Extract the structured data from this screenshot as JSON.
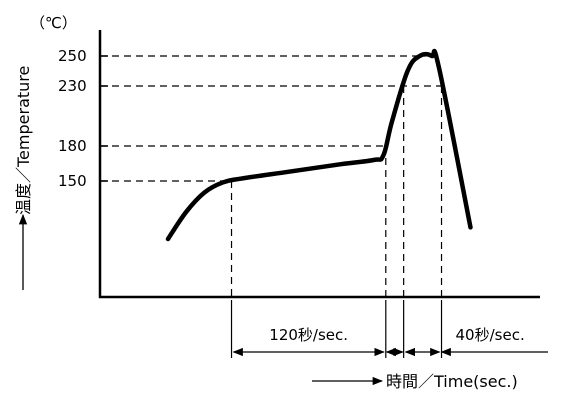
{
  "chart_data": {
    "type": "line",
    "y_unit": "（℃）",
    "ylabel": "温度／Temperature",
    "xlabel": "時間／Time(sec.)",
    "y_ticks": [
      {
        "value": 250,
        "label": "250"
      },
      {
        "value": 230,
        "label": "230"
      },
      {
        "value": 180,
        "label": "180"
      },
      {
        "value": 150,
        "label": "150"
      }
    ],
    "ylim": [
      0,
      250
    ],
    "spans": [
      {
        "label": "120秒/sec.",
        "from": 150,
        "to": 180
      },
      {
        "label": "40秒/sec.",
        "from": 230,
        "to": 230
      }
    ],
    "series": [
      {
        "values": [
          {
            "x": 0,
            "y": 75
          },
          {
            "x": 15,
            "y": 110
          },
          {
            "x": 30,
            "y": 135
          },
          {
            "x": 45,
            "y": 148
          },
          {
            "x": 60,
            "y": 152
          },
          {
            "x": 100,
            "y": 158
          },
          {
            "x": 140,
            "y": 164
          },
          {
            "x": 170,
            "y": 168
          },
          {
            "x": 178,
            "y": 172
          },
          {
            "x": 185,
            "y": 200
          },
          {
            "x": 198,
            "y": 240
          },
          {
            "x": 208,
            "y": 250
          },
          {
            "x": 218,
            "y": 250
          },
          {
            "x": 224,
            "y": 242
          },
          {
            "x": 250,
            "y": 90
          }
        ]
      }
    ]
  }
}
